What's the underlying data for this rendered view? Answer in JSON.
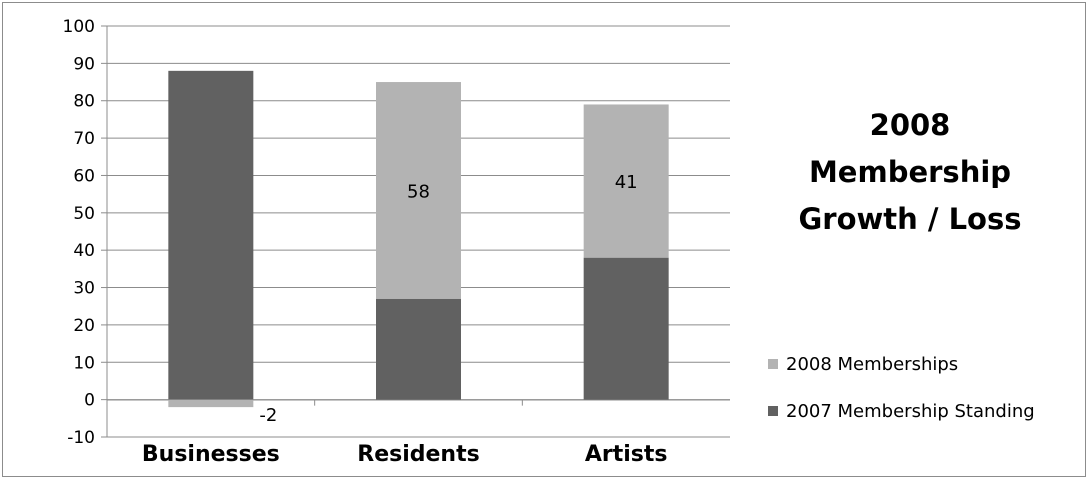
{
  "chart_data": {
    "type": "bar",
    "stacked": true,
    "title": "2008 Membership Growth / Loss",
    "title_lines": [
      "2008",
      "Membership",
      "Growth / Loss"
    ],
    "categories": [
      "Businesses",
      "Residents",
      "Artists"
    ],
    "series": [
      {
        "name": "2007 Membership Standing",
        "values": [
          88,
          27,
          38
        ],
        "color": "#616161"
      },
      {
        "name": "2008 Memberships",
        "values": [
          -2,
          58,
          41
        ],
        "color": "#b3b3b3",
        "data_labels": [
          "-2",
          "58",
          "41"
        ]
      }
    ],
    "ylim": [
      -10,
      100
    ],
    "yticks": [
      "-10",
      "0",
      "10",
      "20",
      "30",
      "40",
      "50",
      "60",
      "70",
      "80",
      "90",
      "100"
    ],
    "grid": true,
    "legend_position": "right"
  }
}
